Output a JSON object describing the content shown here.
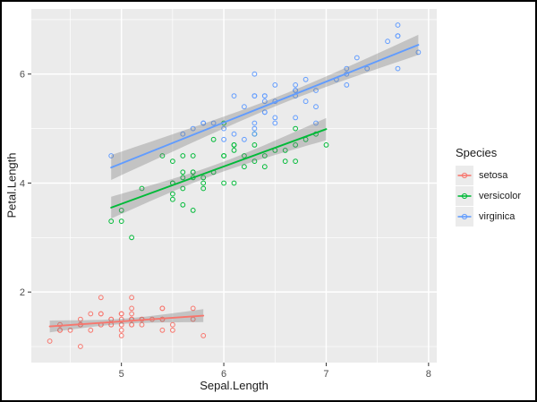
{
  "figure": {
    "xlabel": "Sepal.Length",
    "ylabel": "Petal.Length",
    "x_ticks": [
      5,
      6,
      7,
      8
    ],
    "y_ticks": [
      2,
      4,
      6
    ],
    "x_minor_ticks": [
      4.5,
      5.5,
      6.5,
      7.5
    ],
    "y_minor_ticks": [
      1,
      3,
      5,
      7
    ],
    "xlim": [
      4.12,
      8.08
    ],
    "ylim": [
      0.705,
      7.195
    ],
    "colors": {
      "panel_bg": "#EBEBEB",
      "grid": "#FFFFFF",
      "tick_label": "#4D4D4D",
      "tick_mark": "#333333",
      "axis_title": "#1A1A1A",
      "confidence_band": "rgba(115,115,115,0.33)",
      "border": "#000000"
    }
  },
  "legend": {
    "title": "Species",
    "key_bg": "#EBEBEB",
    "items": [
      {
        "label": "setosa",
        "color": "#F8766D"
      },
      {
        "label": "versicolor",
        "color": "#00BA38"
      },
      {
        "label": "virginica",
        "color": "#619CFF"
      }
    ]
  },
  "chart_data": {
    "type": "scatter",
    "title": "",
    "xlabel": "Sepal.Length",
    "ylabel": "Petal.Length",
    "xlim": [
      4.12,
      8.08
    ],
    "ylim": [
      0.705,
      7.195
    ],
    "x_ticks": [
      5,
      6,
      7,
      8
    ],
    "y_ticks": [
      2,
      4,
      6
    ],
    "grid": true,
    "legend_position": "right",
    "legend_title": "Species",
    "point_shape": "open-circle",
    "smooth": "linear regression (lm) with 95% confidence band per species",
    "series": [
      {
        "name": "setosa",
        "color": "#F8766D",
        "points": [
          [
            5.1,
            1.4
          ],
          [
            4.9,
            1.4
          ],
          [
            4.7,
            1.3
          ],
          [
            4.6,
            1.5
          ],
          [
            5.0,
            1.4
          ],
          [
            5.4,
            1.7
          ],
          [
            4.6,
            1.4
          ],
          [
            5.0,
            1.5
          ],
          [
            4.4,
            1.4
          ],
          [
            4.9,
            1.5
          ],
          [
            5.4,
            1.5
          ],
          [
            4.8,
            1.6
          ],
          [
            4.8,
            1.4
          ],
          [
            4.3,
            1.1
          ],
          [
            5.8,
            1.2
          ],
          [
            5.7,
            1.5
          ],
          [
            5.4,
            1.3
          ],
          [
            5.1,
            1.4
          ],
          [
            5.7,
            1.7
          ],
          [
            5.1,
            1.5
          ],
          [
            5.4,
            1.7
          ],
          [
            5.1,
            1.5
          ],
          [
            4.6,
            1.0
          ],
          [
            5.1,
            1.7
          ],
          [
            4.8,
            1.9
          ],
          [
            5.0,
            1.6
          ],
          [
            5.0,
            1.6
          ],
          [
            5.2,
            1.5
          ],
          [
            5.2,
            1.4
          ],
          [
            4.7,
            1.6
          ],
          [
            4.8,
            1.6
          ],
          [
            5.4,
            1.5
          ],
          [
            5.2,
            1.5
          ],
          [
            5.5,
            1.4
          ],
          [
            4.9,
            1.5
          ],
          [
            5.0,
            1.2
          ],
          [
            5.5,
            1.3
          ],
          [
            4.9,
            1.4
          ],
          [
            4.4,
            1.3
          ],
          [
            5.1,
            1.5
          ],
          [
            5.0,
            1.3
          ],
          [
            4.5,
            1.3
          ],
          [
            4.4,
            1.3
          ],
          [
            5.0,
            1.6
          ],
          [
            5.1,
            1.9
          ],
          [
            4.8,
            1.4
          ],
          [
            5.1,
            1.6
          ],
          [
            4.6,
            1.4
          ],
          [
            5.3,
            1.5
          ],
          [
            5.0,
            1.4
          ]
        ]
      },
      {
        "name": "versicolor",
        "color": "#00BA38",
        "points": [
          [
            7.0,
            4.7
          ],
          [
            6.4,
            4.5
          ],
          [
            6.9,
            4.9
          ],
          [
            5.5,
            4.0
          ],
          [
            6.5,
            4.6
          ],
          [
            5.7,
            4.5
          ],
          [
            6.3,
            4.7
          ],
          [
            4.9,
            3.3
          ],
          [
            6.6,
            4.6
          ],
          [
            5.2,
            3.9
          ],
          [
            5.0,
            3.5
          ],
          [
            5.9,
            4.2
          ],
          [
            6.0,
            4.0
          ],
          [
            6.1,
            4.7
          ],
          [
            5.6,
            3.6
          ],
          [
            6.7,
            4.4
          ],
          [
            5.6,
            4.5
          ],
          [
            5.8,
            4.1
          ],
          [
            6.2,
            4.5
          ],
          [
            5.6,
            3.9
          ],
          [
            5.9,
            4.8
          ],
          [
            6.1,
            4.0
          ],
          [
            6.3,
            4.9
          ],
          [
            6.1,
            4.7
          ],
          [
            6.4,
            4.3
          ],
          [
            6.6,
            4.4
          ],
          [
            6.8,
            4.8
          ],
          [
            6.7,
            5.0
          ],
          [
            6.0,
            4.5
          ],
          [
            5.7,
            3.5
          ],
          [
            5.5,
            3.8
          ],
          [
            5.5,
            3.7
          ],
          [
            5.8,
            3.9
          ],
          [
            6.0,
            5.1
          ],
          [
            5.4,
            4.5
          ],
          [
            6.0,
            4.5
          ],
          [
            6.7,
            4.7
          ],
          [
            6.3,
            4.4
          ],
          [
            5.6,
            4.1
          ],
          [
            5.5,
            4.0
          ],
          [
            5.5,
            4.4
          ],
          [
            6.1,
            4.6
          ],
          [
            5.8,
            4.0
          ],
          [
            5.0,
            3.3
          ],
          [
            5.6,
            4.2
          ],
          [
            5.7,
            4.2
          ],
          [
            5.7,
            4.2
          ],
          [
            6.2,
            4.3
          ],
          [
            5.1,
            3.0
          ],
          [
            5.7,
            4.1
          ]
        ]
      },
      {
        "name": "virginica",
        "color": "#619CFF",
        "points": [
          [
            6.3,
            6.0
          ],
          [
            5.8,
            5.1
          ],
          [
            7.1,
            5.9
          ],
          [
            6.3,
            5.6
          ],
          [
            6.5,
            5.8
          ],
          [
            7.6,
            6.6
          ],
          [
            4.9,
            4.5
          ],
          [
            7.3,
            6.3
          ],
          [
            6.7,
            5.8
          ],
          [
            7.2,
            6.1
          ],
          [
            6.5,
            5.1
          ],
          [
            6.4,
            5.3
          ],
          [
            6.8,
            5.5
          ],
          [
            5.7,
            5.0
          ],
          [
            5.8,
            5.1
          ],
          [
            6.4,
            5.3
          ],
          [
            6.5,
            5.5
          ],
          [
            7.7,
            6.7
          ],
          [
            7.7,
            6.9
          ],
          [
            6.0,
            5.0
          ],
          [
            6.9,
            5.7
          ],
          [
            5.6,
            4.9
          ],
          [
            7.7,
            6.7
          ],
          [
            6.3,
            4.9
          ],
          [
            6.7,
            5.7
          ],
          [
            7.2,
            6.0
          ],
          [
            6.2,
            4.8
          ],
          [
            6.1,
            4.9
          ],
          [
            6.4,
            5.6
          ],
          [
            7.2,
            5.8
          ],
          [
            7.4,
            6.1
          ],
          [
            7.9,
            6.4
          ],
          [
            6.4,
            5.6
          ],
          [
            6.3,
            5.1
          ],
          [
            6.1,
            5.6
          ],
          [
            7.7,
            6.1
          ],
          [
            6.3,
            5.6
          ],
          [
            6.4,
            5.5
          ],
          [
            6.0,
            4.8
          ],
          [
            6.9,
            5.4
          ],
          [
            6.7,
            5.6
          ],
          [
            6.9,
            5.1
          ],
          [
            5.8,
            5.1
          ],
          [
            6.8,
            5.9
          ],
          [
            6.7,
            5.7
          ],
          [
            6.7,
            5.2
          ],
          [
            6.3,
            5.0
          ],
          [
            6.5,
            5.2
          ],
          [
            6.2,
            5.4
          ],
          [
            5.9,
            5.1
          ]
        ]
      }
    ]
  }
}
